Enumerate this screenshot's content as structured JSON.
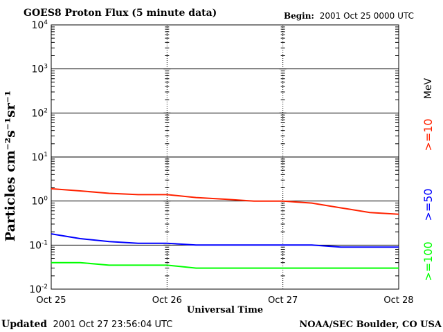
{
  "chart_data": {
    "type": "line",
    "title": "GOES8 Proton Flux (5 minute data)",
    "begin_label": "Begin:",
    "begin_value": "2001 Oct 25 0000 UTC",
    "xlabel": "Universal Time",
    "ylabel": "Particles cm⁻²s⁻¹sr⁻¹",
    "x_ticks": [
      "Oct 25",
      "Oct 26",
      "Oct 27",
      "Oct 28"
    ],
    "xlim_days": [
      0,
      3
    ],
    "y_scale": "log",
    "ylim": [
      0.01,
      10000
    ],
    "y_ticks": [
      {
        "base": "10",
        "exp": "4"
      },
      {
        "base": "10",
        "exp": "3"
      },
      {
        "base": "10",
        "exp": "2"
      },
      {
        "base": "10",
        "exp": "1"
      },
      {
        "base": "10",
        "exp": "0"
      },
      {
        "base": "10",
        "exp": "-1"
      },
      {
        "base": "10",
        "exp": "-2"
      }
    ],
    "unit_label": "MeV",
    "series": [
      {
        "name": ">=10",
        "color": "#ff2200",
        "x_days": [
          0,
          0.25,
          0.5,
          0.75,
          1.0,
          1.25,
          1.5,
          1.75,
          2.0,
          2.25,
          2.5,
          2.75,
          3.0
        ],
        "y": [
          1.9,
          1.7,
          1.5,
          1.4,
          1.4,
          1.2,
          1.1,
          1.0,
          1.0,
          0.9,
          0.7,
          0.55,
          0.5
        ]
      },
      {
        "name": ">=50",
        "color": "#0000ff",
        "x_days": [
          0,
          0.25,
          0.5,
          0.75,
          1.0,
          1.25,
          1.5,
          1.75,
          2.0,
          2.25,
          2.5,
          2.75,
          3.0
        ],
        "y": [
          0.18,
          0.14,
          0.12,
          0.11,
          0.11,
          0.1,
          0.1,
          0.1,
          0.1,
          0.1,
          0.09,
          0.09,
          0.09
        ]
      },
      {
        "name": ">=100",
        "color": "#00ff00",
        "x_days": [
          0,
          0.25,
          0.5,
          0.75,
          1.0,
          1.25,
          1.5,
          1.75,
          2.0,
          2.25,
          2.5,
          2.75,
          3.0
        ],
        "y": [
          0.04,
          0.04,
          0.035,
          0.035,
          0.035,
          0.03,
          0.03,
          0.03,
          0.03,
          0.03,
          0.03,
          0.03,
          0.03
        ]
      }
    ],
    "grid": "horizontal at decades, dashed vertical at day boundaries"
  },
  "footer": {
    "updated_label": "Updated",
    "updated_value": "2001 Oct 27 23:56:04 UTC",
    "credit": "NOAA/SEC Boulder, CO USA"
  }
}
